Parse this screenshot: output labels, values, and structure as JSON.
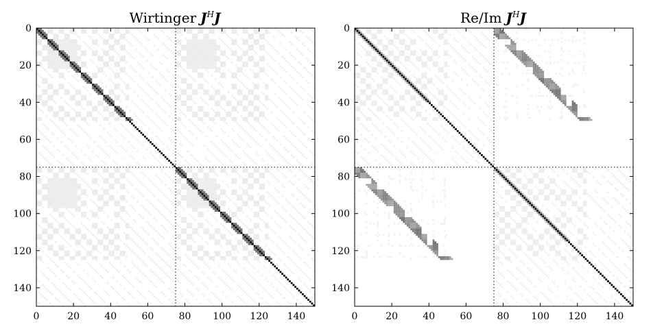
{
  "chart_data": [
    {
      "type": "heatmap",
      "title_prefix": "Wirtinger",
      "title_math": "J^H J",
      "title_base": "J",
      "title_sup": "H",
      "title_tail": "J",
      "size": 150,
      "xlim": [
        0,
        150
      ],
      "ylim": [
        150,
        0
      ],
      "xticks": [
        0,
        20,
        40,
        60,
        80,
        100,
        120,
        140
      ],
      "yticks": [
        0,
        20,
        40,
        60,
        80,
        100,
        120,
        140
      ],
      "divider": 75,
      "colormap": "gray_r",
      "diagonal": "dense",
      "offdiag_pattern": "faint-blocks-and-stripes"
    },
    {
      "type": "heatmap",
      "title_prefix": "Re/Im",
      "title_math": "J^H J",
      "title_base": "J",
      "title_sup": "H",
      "title_tail": "J",
      "size": 150,
      "xlim": [
        0,
        150
      ],
      "ylim": [
        150,
        0
      ],
      "xticks": [
        0,
        20,
        40,
        60,
        80,
        100,
        120,
        140
      ],
      "yticks": [
        0,
        20,
        40,
        60,
        80,
        100,
        120,
        140
      ],
      "divider": 75,
      "colormap": "gray_r",
      "diagonal": "dense",
      "offdiag_pattern": "sparse-ring-clusters"
    }
  ]
}
